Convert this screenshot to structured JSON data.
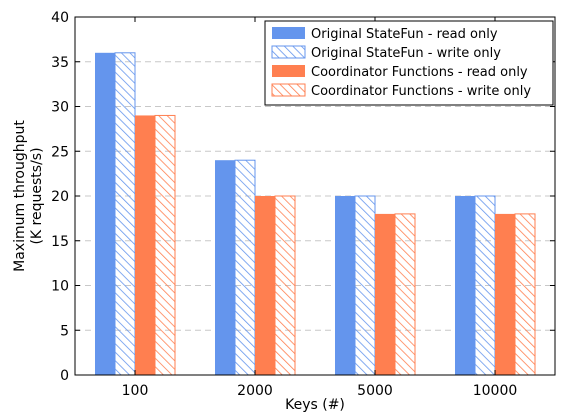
{
  "chart_data": {
    "type": "bar",
    "title": "",
    "xlabel": "Keys (#)",
    "ylabel_lines": [
      "Maximum throughput",
      "(K requests/s)"
    ],
    "ylim": [
      0,
      40
    ],
    "yticks": [
      0,
      5,
      10,
      15,
      20,
      25,
      30,
      35,
      40
    ],
    "categories": [
      "100",
      "2000",
      "5000",
      "10000"
    ],
    "grid": "horizontal dashed",
    "legend_position": "top-right",
    "series": [
      {
        "name": "Original StateFun - read only",
        "values": [
          36,
          24,
          20,
          20
        ],
        "color": "#6495ed",
        "hatch": false
      },
      {
        "name": "Original StateFun - write only",
        "values": [
          36,
          24,
          20,
          20
        ],
        "color": "#6495ed",
        "hatch": true
      },
      {
        "name": "Coordinator Functions - read only",
        "values": [
          29,
          20,
          18,
          18
        ],
        "color": "#ff7f50",
        "hatch": false
      },
      {
        "name": "Coordinator Functions - write only",
        "values": [
          29,
          20,
          18,
          18
        ],
        "color": "#ff7f50",
        "hatch": true
      }
    ]
  }
}
